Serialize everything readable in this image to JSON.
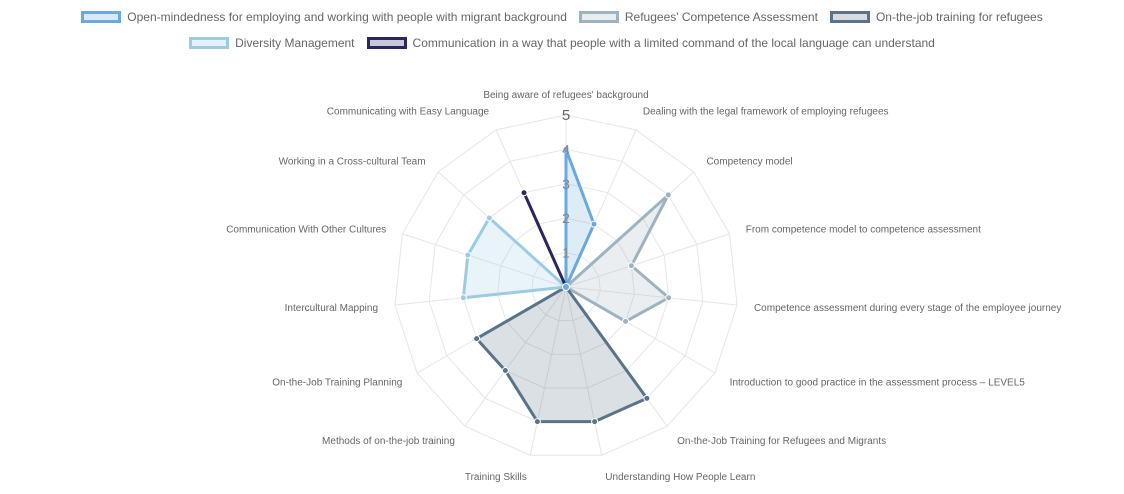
{
  "chart_data": {
    "type": "radar",
    "r_range": [
      0,
      5
    ],
    "r_ticks": [
      "1",
      "2",
      "3",
      "4",
      "5"
    ],
    "grid": true,
    "legend_position": "top",
    "axes": [
      "Being aware of refugees' background",
      "Dealing with the legal framework of employing refugees",
      "Competency model",
      "From competence model to competence assessment",
      "Competence assessment during every stage of the employee journey",
      "Introduction to good practice in the assessment process – LEVEL5",
      "On-the-Job Training for Refugees and Migrants",
      "Understanding How People Learn",
      "Training Skills",
      "Methods of on-the-job training",
      "On-the-Job Training Planning",
      "Intercultural Mapping",
      "Communication With Other Cultures",
      "Working in a Cross-cultural Team",
      "Communicating with Easy Language"
    ],
    "series": [
      {
        "name": "Open-mindedness for employing and working with people with migrant background",
        "color": "#6aa8e0",
        "values": [
          4,
          2,
          0,
          0,
          0,
          0,
          0,
          0,
          0,
          0,
          0,
          0,
          0,
          0,
          0
        ]
      },
      {
        "name": "Refugees' Competence Assessment",
        "color": "#9fb2bf",
        "values": [
          0,
          0,
          4,
          2,
          3,
          2,
          0,
          0,
          0,
          0,
          0,
          0,
          0,
          0,
          0
        ]
      },
      {
        "name": "On-the-job training for refugees",
        "color": "#5a7388",
        "values": [
          0,
          0,
          0,
          0,
          0,
          0,
          4,
          4,
          4,
          3,
          3,
          0,
          0,
          0,
          0
        ]
      },
      {
        "name": "Diversity Management",
        "color": "#9ccbe2",
        "values": [
          0,
          0,
          0,
          0,
          0,
          0,
          0,
          0,
          0,
          0,
          0,
          3,
          3,
          3,
          0
        ]
      },
      {
        "name": "Communication in a way that people with a limited command of the local language can understand",
        "color": "#2b2560",
        "values": [
          0,
          0,
          0,
          0,
          0,
          0,
          0,
          0,
          0,
          0,
          0,
          0,
          0,
          0,
          3
        ]
      }
    ]
  }
}
